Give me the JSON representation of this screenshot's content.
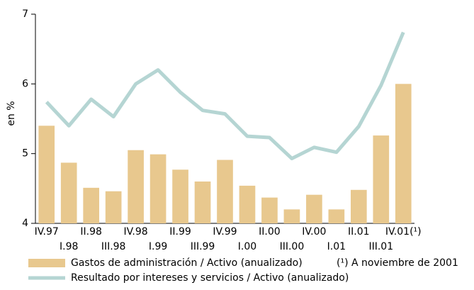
{
  "chart_data": {
    "type": "bar-line",
    "y_label": "en %",
    "categories": [
      "IV.97",
      "I.98",
      "II.98",
      "III.98",
      "IV.98",
      "I.99",
      "II.99",
      "III.99",
      "IV.99",
      "I.00",
      "II.00",
      "III.00",
      "IV.00",
      "I.01",
      "II.01",
      "III.01",
      "IV.01(¹)"
    ],
    "series": [
      {
        "name": "Gastos de administración / Activo (anualizado)",
        "type": "bar",
        "color": "#e8c88e",
        "values": [
          5.4,
          4.87,
          4.51,
          4.46,
          5.05,
          4.99,
          4.77,
          4.6,
          4.91,
          4.54,
          4.37,
          4.2,
          4.41,
          4.2,
          4.48,
          5.26,
          6.0
        ]
      },
      {
        "name": "Resultado por intereses y servicios / Activo (anualizado)",
        "type": "line",
        "color": "#b5d5d3",
        "values": [
          5.74,
          5.4,
          5.78,
          5.53,
          6.0,
          6.2,
          5.88,
          5.62,
          5.57,
          5.25,
          5.23,
          4.93,
          5.09,
          5.02,
          5.39,
          5.98,
          6.74
        ]
      }
    ],
    "note": "(¹) A noviembre de 2001",
    "ylim": [
      4,
      7
    ],
    "yticks": [
      4,
      5,
      6,
      7
    ]
  }
}
